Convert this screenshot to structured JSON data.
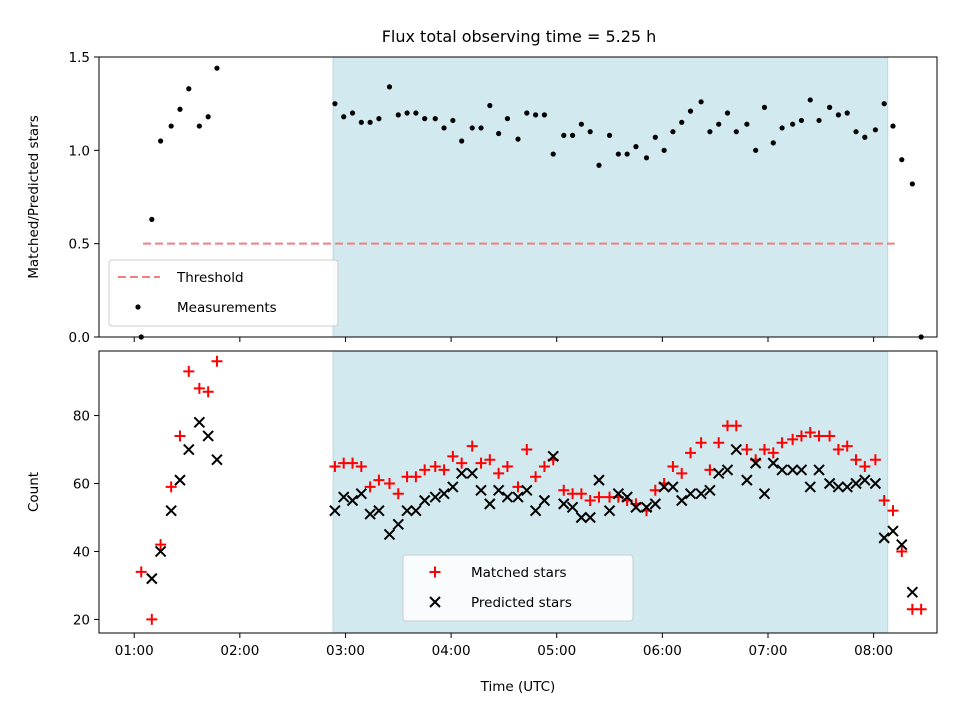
{
  "figure": {
    "title": "Flux total observing time = 5.25 h"
  },
  "chart_data": [
    {
      "type": "scatter",
      "title": "Flux total observing time = 5.25 h",
      "xlabel": "",
      "ylabel": "Matched/Predicted stars",
      "xlim": [
        "00:40",
        "08:36"
      ],
      "ylim": [
        0,
        1.5
      ],
      "yticks": [
        "0.0",
        "0.5",
        "1.0",
        "1.5"
      ],
      "shaded_span": {
        "start": "02:53",
        "end": "08:08",
        "color": "#d2e9ef"
      },
      "threshold": {
        "name": "Threshold",
        "y": 0.5,
        "x_start": "01:05",
        "x_end": "08:12",
        "color": "#f08080",
        "style": "dashed"
      },
      "legend": {
        "position": "lower left",
        "entries": [
          "Threshold",
          "Measurements"
        ]
      },
      "series": [
        {
          "name": "Measurements",
          "marker": "dot",
          "color": "#000000",
          "points": [
            [
              "01:04",
              0.0
            ],
            [
              "01:10",
              0.63
            ],
            [
              "01:15",
              1.05
            ],
            [
              "01:21",
              1.13
            ],
            [
              "01:26",
              1.22
            ],
            [
              "01:31",
              1.33
            ],
            [
              "01:37",
              1.13
            ],
            [
              "01:42",
              1.18
            ],
            [
              "01:47",
              1.44
            ],
            [
              "02:54",
              1.25
            ],
            [
              "02:59",
              1.18
            ],
            [
              "03:04",
              1.2
            ],
            [
              "03:09",
              1.15
            ],
            [
              "03:14",
              1.15
            ],
            [
              "03:19",
              1.17
            ],
            [
              "03:25",
              1.34
            ],
            [
              "03:30",
              1.19
            ],
            [
              "03:35",
              1.2
            ],
            [
              "03:40",
              1.2
            ],
            [
              "03:45",
              1.17
            ],
            [
              "03:51",
              1.17
            ],
            [
              "03:56",
              1.12
            ],
            [
              "04:01",
              1.16
            ],
            [
              "04:06",
              1.05
            ],
            [
              "04:12",
              1.12
            ],
            [
              "04:17",
              1.12
            ],
            [
              "04:22",
              1.24
            ],
            [
              "04:27",
              1.09
            ],
            [
              "04:32",
              1.17
            ],
            [
              "04:38",
              1.06
            ],
            [
              "04:43",
              1.2
            ],
            [
              "04:48",
              1.19
            ],
            [
              "04:53",
              1.19
            ],
            [
              "04:58",
              0.98
            ],
            [
              "05:04",
              1.08
            ],
            [
              "05:09",
              1.08
            ],
            [
              "05:14",
              1.14
            ],
            [
              "05:19",
              1.1
            ],
            [
              "05:24",
              0.92
            ],
            [
              "05:30",
              1.08
            ],
            [
              "05:35",
              0.98
            ],
            [
              "05:40",
              0.98
            ],
            [
              "05:45",
              1.02
            ],
            [
              "05:51",
              0.96
            ],
            [
              "05:56",
              1.07
            ],
            [
              "06:01",
              1.0
            ],
            [
              "06:06",
              1.1
            ],
            [
              "06:11",
              1.15
            ],
            [
              "06:16",
              1.21
            ],
            [
              "06:22",
              1.26
            ],
            [
              "06:27",
              1.1
            ],
            [
              "06:32",
              1.14
            ],
            [
              "06:37",
              1.2
            ],
            [
              "06:42",
              1.1
            ],
            [
              "06:48",
              1.14
            ],
            [
              "06:53",
              1.0
            ],
            [
              "06:58",
              1.23
            ],
            [
              "07:03",
              1.04
            ],
            [
              "07:08",
              1.12
            ],
            [
              "07:14",
              1.14
            ],
            [
              "07:19",
              1.16
            ],
            [
              "07:24",
              1.27
            ],
            [
              "07:29",
              1.16
            ],
            [
              "07:35",
              1.23
            ],
            [
              "07:40",
              1.19
            ],
            [
              "07:45",
              1.2
            ],
            [
              "07:50",
              1.1
            ],
            [
              "07:55",
              1.07
            ],
            [
              "08:01",
              1.11
            ],
            [
              "08:06",
              1.25
            ],
            [
              "08:11",
              1.13
            ],
            [
              "08:16",
              0.95
            ],
            [
              "08:22",
              0.82
            ],
            [
              "08:27",
              0.0
            ]
          ]
        }
      ]
    },
    {
      "type": "scatter",
      "title": "",
      "xlabel": "Time (UTC)",
      "ylabel": "Count",
      "xlim": [
        "00:40",
        "08:36"
      ],
      "ylim": [
        16,
        99
      ],
      "yticks": [
        "20",
        "40",
        "60",
        "80"
      ],
      "xticks": [
        "01:00",
        "02:00",
        "03:00",
        "04:00",
        "05:00",
        "06:00",
        "07:00",
        "08:00"
      ],
      "shaded_span": {
        "start": "02:53",
        "end": "08:08",
        "color": "#d2e9ef"
      },
      "legend": {
        "position": "lower center",
        "entries": [
          "Matched stars",
          "Predicted stars"
        ]
      },
      "series": [
        {
          "name": "Matched stars",
          "marker": "plus",
          "color": "#ff0000",
          "points": [
            [
              "01:04",
              34
            ],
            [
              "01:10",
              20
            ],
            [
              "01:15",
              42
            ],
            [
              "01:21",
              59
            ],
            [
              "01:26",
              74
            ],
            [
              "01:31",
              93
            ],
            [
              "01:37",
              88
            ],
            [
              "01:42",
              87
            ],
            [
              "01:47",
              96
            ],
            [
              "02:54",
              65
            ],
            [
              "02:59",
              66
            ],
            [
              "03:04",
              66
            ],
            [
              "03:09",
              65
            ],
            [
              "03:14",
              59
            ],
            [
              "03:19",
              61
            ],
            [
              "03:25",
              60
            ],
            [
              "03:30",
              57
            ],
            [
              "03:35",
              62
            ],
            [
              "03:40",
              62
            ],
            [
              "03:45",
              64
            ],
            [
              "03:51",
              65
            ],
            [
              "03:56",
              64
            ],
            [
              "04:01",
              68
            ],
            [
              "04:06",
              66
            ],
            [
              "04:12",
              71
            ],
            [
              "04:17",
              66
            ],
            [
              "04:22",
              67
            ],
            [
              "04:27",
              63
            ],
            [
              "04:32",
              65
            ],
            [
              "04:38",
              59
            ],
            [
              "04:43",
              70
            ],
            [
              "04:48",
              62
            ],
            [
              "04:53",
              65
            ],
            [
              "04:58",
              67
            ],
            [
              "05:04",
              58
            ],
            [
              "05:09",
              57
            ],
            [
              "05:14",
              57
            ],
            [
              "05:19",
              55
            ],
            [
              "05:24",
              56
            ],
            [
              "05:30",
              56
            ],
            [
              "05:35",
              56
            ],
            [
              "05:40",
              55
            ],
            [
              "05:45",
              54
            ],
            [
              "05:51",
              52
            ],
            [
              "05:56",
              58
            ],
            [
              "06:01",
              60
            ],
            [
              "06:06",
              65
            ],
            [
              "06:11",
              63
            ],
            [
              "06:16",
              69
            ],
            [
              "06:22",
              72
            ],
            [
              "06:27",
              64
            ],
            [
              "06:32",
              72
            ],
            [
              "06:37",
              77
            ],
            [
              "06:42",
              77
            ],
            [
              "06:48",
              70
            ],
            [
              "06:53",
              67
            ],
            [
              "06:58",
              70
            ],
            [
              "07:03",
              69
            ],
            [
              "07:08",
              72
            ],
            [
              "07:14",
              73
            ],
            [
              "07:19",
              74
            ],
            [
              "07:24",
              75
            ],
            [
              "07:29",
              74
            ],
            [
              "07:35",
              74
            ],
            [
              "07:40",
              70
            ],
            [
              "07:45",
              71
            ],
            [
              "07:50",
              67
            ],
            [
              "07:55",
              65
            ],
            [
              "08:01",
              67
            ],
            [
              "08:06",
              55
            ],
            [
              "08:11",
              52
            ],
            [
              "08:16",
              40
            ],
            [
              "08:22",
              23
            ],
            [
              "08:27",
              23
            ]
          ]
        },
        {
          "name": "Predicted stars",
          "marker": "x",
          "color": "#000000",
          "points": [
            [
              "01:10",
              32
            ],
            [
              "01:15",
              40
            ],
            [
              "01:21",
              52
            ],
            [
              "01:26",
              61
            ],
            [
              "01:31",
              70
            ],
            [
              "01:37",
              78
            ],
            [
              "01:42",
              74
            ],
            [
              "01:47",
              67
            ],
            [
              "02:54",
              52
            ],
            [
              "02:59",
              56
            ],
            [
              "03:04",
              55
            ],
            [
              "03:09",
              57
            ],
            [
              "03:14",
              51
            ],
            [
              "03:19",
              52
            ],
            [
              "03:25",
              45
            ],
            [
              "03:30",
              48
            ],
            [
              "03:35",
              52
            ],
            [
              "03:40",
              52
            ],
            [
              "03:45",
              55
            ],
            [
              "03:51",
              56
            ],
            [
              "03:56",
              57
            ],
            [
              "04:01",
              59
            ],
            [
              "04:06",
              63
            ],
            [
              "04:12",
              63
            ],
            [
              "04:17",
              58
            ],
            [
              "04:22",
              54
            ],
            [
              "04:27",
              58
            ],
            [
              "04:32",
              56
            ],
            [
              "04:38",
              56
            ],
            [
              "04:43",
              58
            ],
            [
              "04:48",
              52
            ],
            [
              "04:53",
              55
            ],
            [
              "04:58",
              68
            ],
            [
              "05:04",
              54
            ],
            [
              "05:09",
              53
            ],
            [
              "05:14",
              50
            ],
            [
              "05:19",
              50
            ],
            [
              "05:24",
              61
            ],
            [
              "05:30",
              52
            ],
            [
              "05:35",
              57
            ],
            [
              "05:40",
              56
            ],
            [
              "05:45",
              53
            ],
            [
              "05:51",
              53
            ],
            [
              "05:56",
              54
            ],
            [
              "06:01",
              59
            ],
            [
              "06:06",
              59
            ],
            [
              "06:11",
              55
            ],
            [
              "06:16",
              57
            ],
            [
              "06:22",
              57
            ],
            [
              "06:27",
              58
            ],
            [
              "06:32",
              63
            ],
            [
              "06:37",
              64
            ],
            [
              "06:42",
              70
            ],
            [
              "06:48",
              61
            ],
            [
              "06:53",
              66
            ],
            [
              "06:58",
              57
            ],
            [
              "07:03",
              66
            ],
            [
              "07:08",
              64
            ],
            [
              "07:14",
              64
            ],
            [
              "07:19",
              64
            ],
            [
              "07:24",
              59
            ],
            [
              "07:29",
              64
            ],
            [
              "07:35",
              60
            ],
            [
              "07:40",
              59
            ],
            [
              "07:45",
              59
            ],
            [
              "07:50",
              60
            ],
            [
              "07:55",
              61
            ],
            [
              "08:01",
              60
            ],
            [
              "08:06",
              44
            ],
            [
              "08:11",
              46
            ],
            [
              "08:16",
              42
            ],
            [
              "08:22",
              28
            ]
          ]
        }
      ]
    }
  ]
}
